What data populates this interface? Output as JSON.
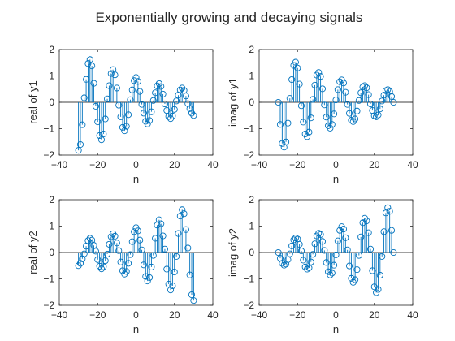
{
  "figure": {
    "title": "Exponentially growing and decaying signals",
    "series_color": "#0072BD"
  },
  "chart_data": [
    {
      "type": "stem",
      "xlabel": "n",
      "ylabel": "real of y1",
      "xlim": [
        -40,
        40
      ],
      "ylim": [
        -2,
        2
      ],
      "xticks": [
        -40,
        -20,
        0,
        20,
        40
      ],
      "yticks": [
        -2,
        -1,
        0,
        1,
        2
      ],
      "grid": false,
      "x": [
        -30,
        -29,
        -28,
        -27,
        -26,
        -25,
        -24,
        -23,
        -22,
        -21,
        -20,
        -19,
        -18,
        -17,
        -16,
        -15,
        -14,
        -13,
        -12,
        -11,
        -10,
        -9,
        -8,
        -7,
        -6,
        -5,
        -4,
        -3,
        -2,
        -1,
        0,
        1,
        2,
        3,
        4,
        5,
        6,
        7,
        8,
        9,
        10,
        11,
        12,
        13,
        14,
        15,
        16,
        17,
        18,
        19,
        20,
        21,
        22,
        23,
        24,
        25,
        26,
        27,
        28,
        29,
        30
      ],
      "y": [
        -1.82,
        -1.6,
        -0.85,
        0.17,
        0.87,
        1.47,
        1.62,
        1.38,
        0.72,
        -0.15,
        -0.74,
        -1.26,
        -1.42,
        -1.2,
        -0.63,
        0.13,
        0.63,
        1.09,
        1.24,
        1.04,
        0.54,
        -0.11,
        -0.55,
        -0.95,
        -1.08,
        -0.91,
        -0.47,
        0.1,
        0.47,
        0.82,
        0.94,
        0.79,
        0.41,
        -0.08,
        -0.41,
        -0.72,
        -0.82,
        -0.69,
        -0.36,
        0.07,
        0.36,
        0.62,
        0.71,
        0.6,
        0.31,
        -0.06,
        -0.31,
        -0.54,
        -0.62,
        -0.52,
        -0.27,
        0.05,
        0.27,
        0.47,
        0.54,
        0.45,
        0.24,
        -0.05,
        -0.24,
        -0.41,
        -0.5
      ]
    },
    {
      "type": "stem",
      "xlabel": "n",
      "ylabel": "imag of y1",
      "xlim": [
        -40,
        40
      ],
      "ylim": [
        -2,
        2
      ],
      "xticks": [
        -40,
        -20,
        0,
        20,
        40
      ],
      "yticks": [
        -2,
        -1,
        0,
        1,
        2
      ],
      "grid": false,
      "x": [
        -30,
        -29,
        -28,
        -27,
        -26,
        -25,
        -24,
        -23,
        -22,
        -21,
        -20,
        -19,
        -18,
        -17,
        -16,
        -15,
        -14,
        -13,
        -12,
        -11,
        -10,
        -9,
        -8,
        -7,
        -6,
        -5,
        -4,
        -3,
        -2,
        -1,
        0,
        1,
        2,
        3,
        4,
        5,
        6,
        7,
        8,
        9,
        10,
        11,
        12,
        13,
        14,
        15,
        16,
        17,
        18,
        19,
        20,
        21,
        22,
        23,
        24,
        25,
        26,
        27,
        28,
        29,
        30
      ],
      "y": [
        0,
        -0.84,
        -1.56,
        -1.7,
        -1.5,
        -0.79,
        0.15,
        0.86,
        1.4,
        1.52,
        1.3,
        0.69,
        -0.13,
        -0.75,
        -1.2,
        -1.3,
        -1.13,
        -0.59,
        0.11,
        0.65,
        1.03,
        1.13,
        0.98,
        0.51,
        -0.1,
        -0.56,
        -0.89,
        -0.98,
        -0.84,
        -0.44,
        0.09,
        0.48,
        0.78,
        0.85,
        0.73,
        0.38,
        -0.08,
        -0.42,
        -0.68,
        -0.73,
        -0.63,
        -0.33,
        0.07,
        0.36,
        0.58,
        0.63,
        0.55,
        0.29,
        -0.06,
        -0.31,
        -0.51,
        -0.55,
        -0.48,
        -0.25,
        0.05,
        0.27,
        0.44,
        0.48,
        0.41,
        0.22,
        0.0
      ]
    },
    {
      "type": "stem",
      "xlabel": "n",
      "ylabel": "real of y2",
      "xlim": [
        -40,
        40
      ],
      "ylim": [
        -2,
        2
      ],
      "xticks": [
        -40,
        -20,
        0,
        20,
        40
      ],
      "yticks": [
        -2,
        -1,
        0,
        1,
        2
      ],
      "grid": false,
      "x": [
        -30,
        -29,
        -28,
        -27,
        -26,
        -25,
        -24,
        -23,
        -22,
        -21,
        -20,
        -19,
        -18,
        -17,
        -16,
        -15,
        -14,
        -13,
        -12,
        -11,
        -10,
        -9,
        -8,
        -7,
        -6,
        -5,
        -4,
        -3,
        -2,
        -1,
        0,
        1,
        2,
        3,
        4,
        5,
        6,
        7,
        8,
        9,
        10,
        11,
        12,
        13,
        14,
        15,
        16,
        17,
        18,
        19,
        20,
        21,
        22,
        23,
        24,
        25,
        26,
        27,
        28,
        29,
        30
      ],
      "y": [
        -0.5,
        -0.41,
        -0.24,
        -0.05,
        0.24,
        0.45,
        0.54,
        0.47,
        0.27,
        0.05,
        -0.27,
        -0.52,
        -0.62,
        -0.54,
        -0.31,
        -0.06,
        0.31,
        0.6,
        0.71,
        0.62,
        0.36,
        0.07,
        -0.36,
        -0.69,
        -0.82,
        -0.72,
        -0.41,
        -0.08,
        0.41,
        0.79,
        0.94,
        0.82,
        0.47,
        0.1,
        -0.47,
        -0.91,
        -1.08,
        -0.95,
        -0.55,
        -0.11,
        0.54,
        1.04,
        1.24,
        1.09,
        0.63,
        0.13,
        -0.63,
        -1.2,
        -1.42,
        -1.26,
        -0.74,
        -0.15,
        0.72,
        1.38,
        1.62,
        1.47,
        0.87,
        0.17,
        -0.85,
        -1.6,
        -1.82
      ]
    },
    {
      "type": "stem",
      "xlabel": "n",
      "ylabel": "imag of y2",
      "xlim": [
        -40,
        40
      ],
      "ylim": [
        -2,
        2
      ],
      "xticks": [
        -40,
        -20,
        0,
        20,
        40
      ],
      "yticks": [
        -2,
        -1,
        0,
        1,
        2
      ],
      "grid": false,
      "x": [
        -30,
        -29,
        -28,
        -27,
        -26,
        -25,
        -24,
        -23,
        -22,
        -21,
        -20,
        -19,
        -18,
        -17,
        -16,
        -15,
        -14,
        -13,
        -12,
        -11,
        -10,
        -9,
        -8,
        -7,
        -6,
        -5,
        -4,
        -3,
        -2,
        -1,
        0,
        1,
        2,
        3,
        4,
        5,
        6,
        7,
        8,
        9,
        10,
        11,
        12,
        13,
        14,
        15,
        16,
        17,
        18,
        19,
        20,
        21,
        22,
        23,
        24,
        25,
        26,
        27,
        28,
        29,
        30
      ],
      "y": [
        0,
        -0.22,
        -0.41,
        -0.48,
        -0.44,
        -0.27,
        -0.05,
        0.25,
        0.48,
        0.55,
        0.51,
        0.31,
        0.06,
        -0.29,
        -0.55,
        -0.63,
        -0.58,
        -0.36,
        -0.07,
        0.33,
        0.63,
        0.73,
        0.68,
        0.42,
        0.08,
        -0.38,
        -0.73,
        -0.85,
        -0.78,
        -0.48,
        -0.09,
        0.44,
        0.84,
        0.98,
        0.89,
        0.56,
        0.1,
        -0.51,
        -0.98,
        -1.13,
        -1.03,
        -0.65,
        -0.11,
        0.59,
        1.13,
        1.3,
        1.2,
        0.75,
        0.13,
        -0.69,
        -1.3,
        -1.52,
        -1.4,
        -0.86,
        -0.15,
        0.79,
        1.5,
        1.7,
        1.56,
        0.84,
        0.0
      ]
    }
  ]
}
